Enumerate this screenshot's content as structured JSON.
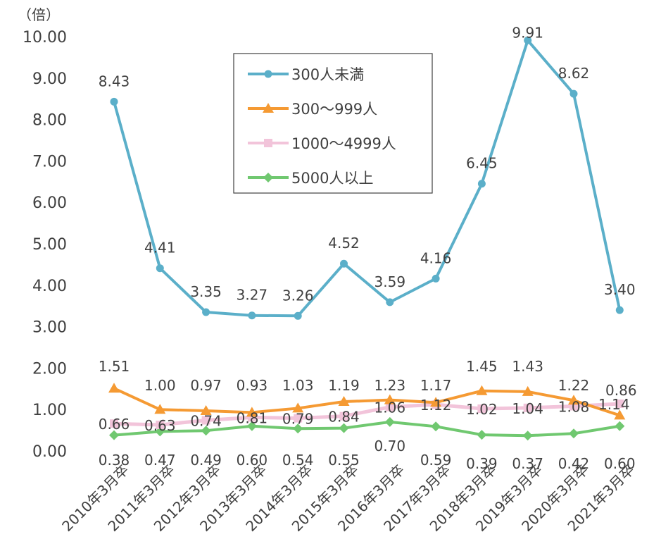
{
  "chart_data": {
    "type": "line",
    "unit_label": "（倍）",
    "x": [
      "2010年3月卒",
      "2011年3月卒",
      "2012年3月卒",
      "2013年3月卒",
      "2014年3月卒",
      "2015年3月卒",
      "2016年3月卒",
      "2017年3月卒",
      "2018年3月卒",
      "2019年3月卒",
      "2020年3月卒",
      "2021年3月卒"
    ],
    "y_ticks": [
      "0.00",
      "1.00",
      "2.00",
      "3.00",
      "4.00",
      "5.00",
      "6.00",
      "7.00",
      "8.00",
      "9.00",
      "10.00"
    ],
    "ylim": [
      0,
      10
    ],
    "grid": false,
    "legend_position": "top-center",
    "series": [
      {
        "name": "300人未満",
        "color": "#5BAFC9",
        "marker": "circle",
        "values": [
          8.43,
          4.41,
          3.35,
          3.27,
          3.26,
          4.52,
          3.59,
          4.16,
          6.45,
          9.91,
          8.62,
          3.4
        ],
        "labels": [
          "8.43",
          "4.41",
          "3.35",
          "3.27",
          "3.26",
          "4.52",
          "3.59",
          "4.16",
          "6.45",
          "9.91",
          "8.62",
          "3.40"
        ]
      },
      {
        "name": "300〜999人",
        "color": "#F59A33",
        "marker": "triangle",
        "values": [
          1.51,
          1.0,
          0.97,
          0.93,
          1.03,
          1.19,
          1.23,
          1.17,
          1.45,
          1.43,
          1.22,
          0.86
        ],
        "labels": [
          "1.51",
          "1.00",
          "0.97",
          "0.93",
          "1.03",
          "1.19",
          "1.23",
          "1.17",
          "1.45",
          "1.43",
          "1.22",
          "0.86"
        ]
      },
      {
        "name": "1000〜4999人",
        "color": "#F2C4DA",
        "marker": "square",
        "values": [
          0.66,
          0.63,
          0.74,
          0.81,
          0.79,
          0.84,
          1.06,
          1.12,
          1.02,
          1.04,
          1.08,
          1.14
        ],
        "labels": [
          "0.66",
          "0.63",
          "0.74",
          "0.81",
          "0.79",
          "0.84",
          "1.06",
          "1.12",
          "1.02",
          "1.04",
          "1.08",
          "1.14"
        ]
      },
      {
        "name": "5000人以上",
        "color": "#70C870",
        "marker": "diamond",
        "values": [
          0.38,
          0.47,
          0.49,
          0.6,
          0.54,
          0.55,
          0.7,
          0.59,
          0.39,
          0.37,
          0.42,
          0.6
        ],
        "labels": [
          "0.38",
          "0.47",
          "0.49",
          "0.60",
          "0.54",
          "0.55",
          "0.70",
          "0.59",
          "0.39",
          "0.37",
          "0.42",
          "0.60"
        ]
      }
    ]
  }
}
